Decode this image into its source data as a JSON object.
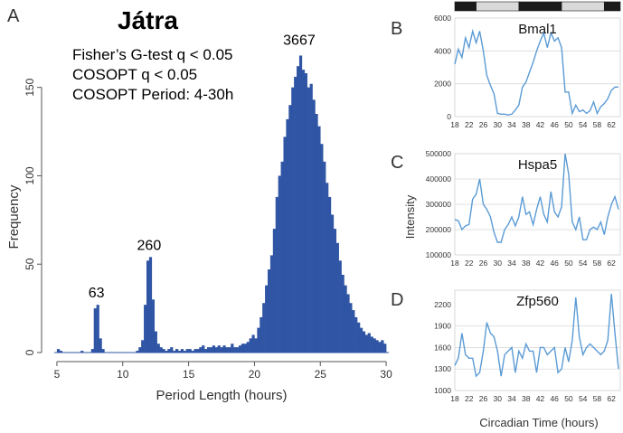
{
  "chart_data": [
    {
      "panel": "A",
      "type": "bar",
      "title": "Játra",
      "annotations": [
        "Fisher’s G-test q < 0.05",
        "COSOPT q < 0.05",
        "COSOPT Period: 4-30h"
      ],
      "peak_labels": [
        {
          "x": 8,
          "y": 27,
          "text": "63"
        },
        {
          "x": 12,
          "y": 54,
          "text": "260"
        },
        {
          "x": 23.4,
          "y": 170,
          "text": "3667"
        }
      ],
      "xlabel": "Period Length (hours)",
      "ylabel": "Frequency",
      "xlim": [
        4.8,
        30.2
      ],
      "ylim": [
        0,
        180
      ],
      "xticks": [
        5,
        10,
        15,
        20,
        25,
        30
      ],
      "yticks": [
        0,
        50,
        100,
        150
      ],
      "bin_width": 0.2,
      "bars": [
        [
          5,
          2
        ],
        [
          5.2,
          1
        ],
        [
          5.4,
          0
        ],
        [
          5.6,
          0
        ],
        [
          5.8,
          0
        ],
        [
          6,
          0
        ],
        [
          6.2,
          0
        ],
        [
          6.4,
          0
        ],
        [
          6.6,
          0
        ],
        [
          6.8,
          1
        ],
        [
          7,
          0
        ],
        [
          7.2,
          0
        ],
        [
          7.4,
          0
        ],
        [
          7.6,
          2
        ],
        [
          7.8,
          25
        ],
        [
          8,
          27
        ],
        [
          8.2,
          8
        ],
        [
          8.4,
          2
        ],
        [
          8.6,
          0
        ],
        [
          8.8,
          0
        ],
        [
          9,
          0
        ],
        [
          9.2,
          0
        ],
        [
          9.4,
          0
        ],
        [
          9.6,
          0
        ],
        [
          9.8,
          0
        ],
        [
          10,
          0
        ],
        [
          10.2,
          0
        ],
        [
          10.4,
          0
        ],
        [
          10.6,
          0
        ],
        [
          10.8,
          0
        ],
        [
          11,
          1
        ],
        [
          11.2,
          3
        ],
        [
          11.4,
          7
        ],
        [
          11.6,
          27
        ],
        [
          11.8,
          52
        ],
        [
          12,
          54
        ],
        [
          12.2,
          30
        ],
        [
          12.4,
          12
        ],
        [
          12.6,
          5
        ],
        [
          12.8,
          3
        ],
        [
          13,
          2
        ],
        [
          13.2,
          1
        ],
        [
          13.4,
          2
        ],
        [
          13.6,
          3
        ],
        [
          13.8,
          1
        ],
        [
          14,
          2
        ],
        [
          14.2,
          1
        ],
        [
          14.4,
          2
        ],
        [
          14.6,
          1
        ],
        [
          14.8,
          2
        ],
        [
          15,
          2
        ],
        [
          15.2,
          1
        ],
        [
          15.4,
          2
        ],
        [
          15.6,
          2
        ],
        [
          15.8,
          3
        ],
        [
          16,
          4
        ],
        [
          16.2,
          2
        ],
        [
          16.4,
          3
        ],
        [
          16.6,
          3
        ],
        [
          16.8,
          4
        ],
        [
          17,
          3
        ],
        [
          17.2,
          4
        ],
        [
          17.4,
          3
        ],
        [
          17.6,
          4
        ],
        [
          17.8,
          3
        ],
        [
          18,
          3
        ],
        [
          18.2,
          5
        ],
        [
          18.4,
          3
        ],
        [
          18.6,
          3
        ],
        [
          18.8,
          4
        ],
        [
          19,
          5
        ],
        [
          19.2,
          5
        ],
        [
          19.4,
          6
        ],
        [
          19.6,
          8
        ],
        [
          19.8,
          10
        ],
        [
          20,
          8
        ],
        [
          20.2,
          14
        ],
        [
          20.4,
          20
        ],
        [
          20.6,
          28
        ],
        [
          20.8,
          38
        ],
        [
          21,
          47
        ],
        [
          21.2,
          55
        ],
        [
          21.4,
          70
        ],
        [
          21.6,
          88
        ],
        [
          21.8,
          100
        ],
        [
          22,
          108
        ],
        [
          22.2,
          122
        ],
        [
          22.4,
          132
        ],
        [
          22.6,
          140
        ],
        [
          22.8,
          150
        ],
        [
          23,
          156
        ],
        [
          23.2,
          162
        ],
        [
          23.4,
          168
        ],
        [
          23.6,
          160
        ],
        [
          23.8,
          158
        ],
        [
          24,
          150
        ],
        [
          24.2,
          152
        ],
        [
          24.4,
          143
        ],
        [
          24.6,
          135
        ],
        [
          24.8,
          128
        ],
        [
          25,
          118
        ],
        [
          25.2,
          108
        ],
        [
          25.4,
          96
        ],
        [
          25.6,
          88
        ],
        [
          25.8,
          78
        ],
        [
          26,
          70
        ],
        [
          26.2,
          62
        ],
        [
          26.4,
          52
        ],
        [
          26.6,
          44
        ],
        [
          26.8,
          38
        ],
        [
          27,
          33
        ],
        [
          27.2,
          28
        ],
        [
          27.4,
          24
        ],
        [
          27.6,
          20
        ],
        [
          27.8,
          17
        ],
        [
          28,
          14
        ],
        [
          28.2,
          12
        ],
        [
          28.4,
          10
        ],
        [
          28.6,
          11
        ],
        [
          28.8,
          9
        ],
        [
          29,
          8
        ],
        [
          29.2,
          7
        ],
        [
          29.4,
          6
        ],
        [
          29.6,
          7
        ],
        [
          29.8,
          5
        ]
      ]
    },
    {
      "panel": "B",
      "type": "line",
      "title": "Bmal1",
      "x": [
        18,
        19,
        20,
        21,
        22,
        23,
        24,
        25,
        26,
        27,
        28,
        29,
        30,
        31,
        32,
        33,
        34,
        35,
        36,
        37,
        38,
        39,
        40,
        41,
        42,
        43,
        44,
        45,
        46,
        47,
        48,
        49,
        50,
        51,
        52,
        53,
        54,
        55,
        56,
        57,
        58,
        59,
        60,
        61,
        62,
        63,
        64
      ],
      "y": [
        3200,
        4100,
        3600,
        4800,
        4200,
        5200,
        4500,
        5200,
        4000,
        2500,
        1900,
        1400,
        200,
        150,
        150,
        100,
        150,
        400,
        700,
        1800,
        2100,
        2700,
        3300,
        4000,
        4600,
        5100,
        4200,
        5100,
        4600,
        4800,
        4200,
        1500,
        1500,
        200,
        700,
        300,
        400,
        200,
        350,
        900,
        200,
        600,
        800,
        1100,
        1600,
        1800,
        1800
      ],
      "xlim": [
        18,
        64.5
      ],
      "ylim": [
        0,
        6000
      ],
      "xticks": [
        18,
        22,
        26,
        30,
        34,
        38,
        42,
        46,
        50,
        54,
        58,
        62
      ],
      "yticks": [
        0,
        2000,
        4000,
        6000
      ],
      "lightbar": [
        {
          "from": 18,
          "to": 24,
          "state": "dark"
        },
        {
          "from": 24,
          "to": 36,
          "state": "light"
        },
        {
          "from": 36,
          "to": 48,
          "state": "dark"
        },
        {
          "from": 48,
          "to": 60,
          "state": "light"
        },
        {
          "from": 60,
          "to": 64.5,
          "state": "dark"
        }
      ]
    },
    {
      "panel": "C",
      "type": "line",
      "title": "Hspa5",
      "ylabel": "Intensity",
      "x": [
        18,
        19,
        20,
        21,
        22,
        23,
        24,
        25,
        26,
        27,
        28,
        29,
        30,
        31,
        32,
        33,
        34,
        35,
        36,
        37,
        38,
        39,
        40,
        41,
        42,
        43,
        44,
        45,
        46,
        47,
        48,
        49,
        50,
        51,
        52,
        53,
        54,
        55,
        56,
        57,
        58,
        59,
        60,
        61,
        62,
        63,
        64
      ],
      "y": [
        240000,
        235000,
        200000,
        215000,
        220000,
        320000,
        340000,
        400000,
        300000,
        280000,
        250000,
        190000,
        150000,
        150000,
        200000,
        220000,
        250000,
        215000,
        250000,
        330000,
        260000,
        270000,
        220000,
        280000,
        330000,
        260000,
        230000,
        350000,
        270000,
        250000,
        290000,
        500000,
        420000,
        230000,
        200000,
        250000,
        160000,
        160000,
        200000,
        210000,
        200000,
        230000,
        180000,
        250000,
        300000,
        330000,
        280000
      ],
      "xlim": [
        18,
        64.5
      ],
      "ylim": [
        100000,
        500000
      ],
      "xticks": [
        18,
        22,
        26,
        30,
        34,
        38,
        42,
        46,
        50,
        54,
        58,
        62
      ],
      "yticks": [
        100000,
        200000,
        300000,
        400000,
        500000
      ]
    },
    {
      "panel": "D",
      "type": "line",
      "title": "Zfp560",
      "x": [
        18,
        19,
        20,
        21,
        22,
        23,
        24,
        25,
        26,
        27,
        28,
        29,
        30,
        31,
        32,
        33,
        34,
        35,
        36,
        37,
        38,
        39,
        40,
        41,
        42,
        43,
        44,
        45,
        46,
        47,
        48,
        49,
        50,
        51,
        52,
        53,
        54,
        55,
        56,
        57,
        58,
        59,
        60,
        61,
        62,
        63,
        64
      ],
      "y": [
        1350,
        1450,
        1800,
        1500,
        1450,
        1450,
        1200,
        1250,
        1550,
        1950,
        1800,
        1750,
        1550,
        1200,
        1500,
        1550,
        1600,
        1250,
        1550,
        1450,
        1650,
        1550,
        1550,
        1250,
        1600,
        1600,
        1500,
        1550,
        1600,
        1250,
        1300,
        1600,
        1400,
        1700,
        2300,
        1750,
        1500,
        1600,
        1650,
        1600,
        1550,
        1500,
        1550,
        1700,
        2350,
        1800,
        1300
      ],
      "xlim": [
        18,
        64.5
      ],
      "ylim": [
        1000,
        2400
      ],
      "xticks": [
        18,
        22,
        26,
        30,
        34,
        38,
        42,
        46,
        50,
        54,
        58,
        62
      ],
      "yticks": [
        1000,
        1300,
        1600,
        1900,
        2200
      ]
    }
  ],
  "labels": {
    "panel_a": "A",
    "panel_b": "B",
    "panel_c": "C",
    "panel_d": "D",
    "right_xlabel": "Circadian Time (hours)"
  },
  "colors": {
    "bars": "#2f55a4",
    "line": "#5b9bd5",
    "frame": "#d9d9d9",
    "light_phase": "#d9d9d9",
    "dark_phase": "#1a1a1a"
  }
}
